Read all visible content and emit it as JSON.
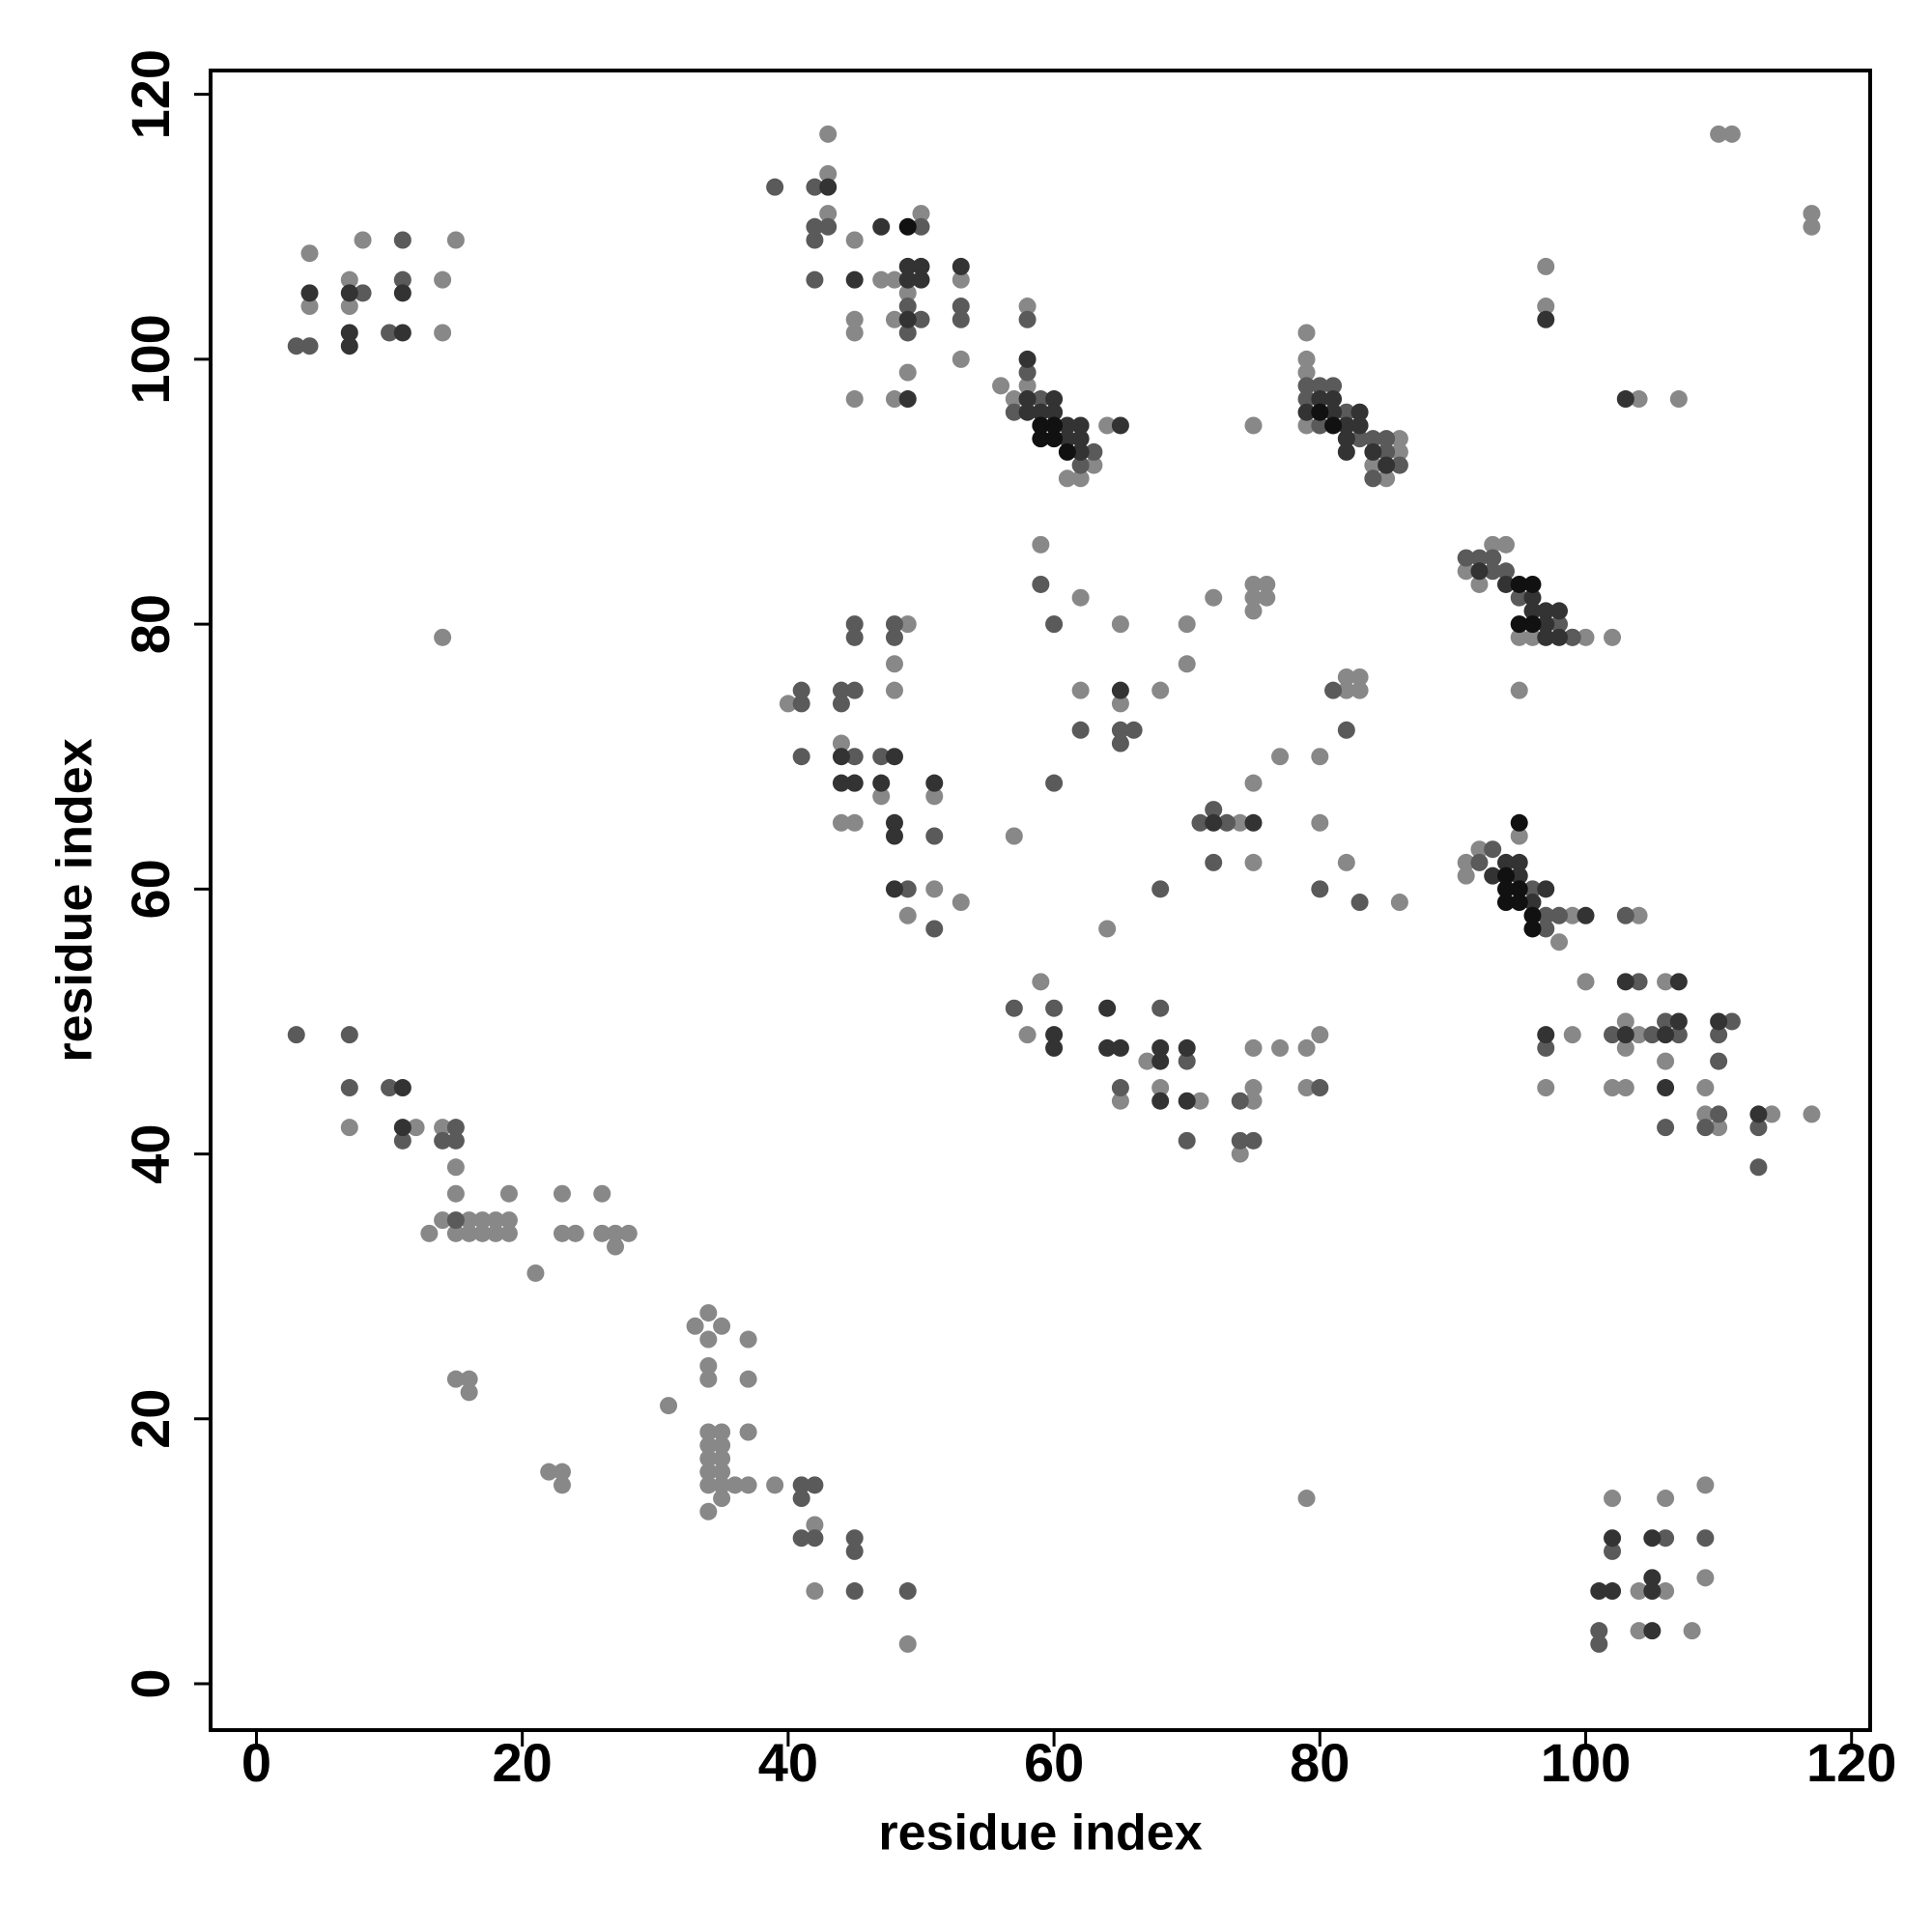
{
  "chart_data": {
    "type": "scatter",
    "xlabel": "residue index",
    "ylabel": "residue index",
    "xlim": [
      -3.45,
      121.4
    ],
    "ylim": [
      -3.5,
      121.8
    ],
    "xticks": [
      0,
      20,
      40,
      60,
      80,
      100,
      120
    ],
    "yticks": [
      0,
      20,
      40,
      60,
      80,
      100,
      120
    ],
    "series": [
      {
        "color": "#888888",
        "x": [
          4,
          4,
          7,
          7,
          8,
          14,
          14,
          15,
          14,
          7,
          12,
          14,
          15,
          15,
          14,
          15,
          16,
          17,
          18,
          19,
          16,
          17,
          18,
          19,
          19,
          13,
          23,
          23,
          24,
          26,
          26,
          27,
          27,
          28,
          21,
          15,
          16,
          16,
          22,
          23,
          23,
          31,
          33,
          34,
          34,
          35,
          34,
          34,
          37,
          37,
          37,
          34,
          35,
          34,
          35,
          34,
          35,
          34,
          35,
          34,
          35,
          34,
          36,
          37,
          35,
          39,
          42,
          42,
          49,
          43,
          43,
          43,
          45,
          45,
          45,
          45,
          47,
          48,
          48,
          48,
          49,
          49,
          50,
          53,
          53,
          40,
          44,
          44,
          45,
          45,
          47,
          48,
          48,
          49,
          51,
          51,
          49,
          53,
          56,
          57,
          58,
          58,
          61,
          62,
          63,
          64,
          59,
          57,
          62,
          62,
          65,
          65,
          64,
          68,
          70,
          70,
          72,
          59,
          58,
          65,
          67,
          68,
          71,
          74,
          75,
          75,
          75,
          77,
          79,
          80,
          79,
          74,
          75,
          75,
          75,
          76,
          75,
          76,
          75,
          77,
          80,
          80,
          82,
          82,
          83,
          83,
          82,
          86,
          75,
          79,
          79,
          79,
          79,
          84,
          85,
          86,
          86,
          91,
          92,
          93,
          94,
          95,
          96,
          99,
          100,
          102,
          95,
          91,
          91,
          92,
          95,
          98,
          99,
          97,
          99,
          100,
          102,
          103,
          103,
          104,
          103,
          106,
          106,
          104,
          109,
          109,
          110,
          114,
          117,
          97,
          97,
          104,
          107,
          110,
          111,
          117,
          117,
          102,
          106,
          104,
          106,
          104,
          108,
          109,
          109,
          79
        ],
        "y": [
          108,
          104,
          106,
          104,
          109,
          106,
          102,
          109,
          79,
          42,
          42,
          42,
          39,
          37,
          35,
          34,
          34,
          34,
          34,
          34,
          35,
          35,
          35,
          35,
          37,
          34,
          37,
          34,
          34,
          37,
          34,
          34,
          33,
          34,
          31,
          23,
          23,
          22,
          16,
          16,
          15,
          21,
          27,
          28,
          26,
          27,
          24,
          23,
          26,
          23,
          19,
          19,
          19,
          18,
          18,
          17,
          17,
          16,
          16,
          15,
          15,
          13,
          15,
          15,
          14,
          15,
          12,
          7,
          3,
          117,
          114,
          111,
          109,
          103,
          102,
          97,
          106,
          106,
          103,
          97,
          105,
          99,
          111,
          106,
          100,
          74,
          71,
          65,
          65,
          68,
          67,
          77,
          75,
          80,
          67,
          60,
          58,
          59,
          98,
          97,
          104,
          98,
          91,
          91,
          92,
          95,
          86,
          64,
          82,
          75,
          80,
          74,
          57,
          75,
          80,
          77,
          82,
          53,
          49,
          44,
          47,
          45,
          44,
          40,
          48,
          45,
          44,
          48,
          48,
          49,
          45,
          65,
          68,
          62,
          83,
          83,
          82,
          82,
          81,
          70,
          70,
          65,
          75,
          76,
          76,
          75,
          62,
          59,
          95,
          102,
          100,
          99,
          95,
          92,
          91,
          94,
          93,
          84,
          83,
          86,
          86,
          79,
          79,
          79,
          79,
          79,
          75,
          62,
          61,
          63,
          64,
          56,
          58,
          45,
          49,
          53,
          45,
          50,
          48,
          58,
          45,
          53,
          47,
          49,
          45,
          43,
          42,
          43,
          43,
          107,
          104,
          97,
          97,
          117,
          117,
          111,
          110,
          14,
          14,
          7,
          7,
          4,
          4,
          15,
          8,
          14
        ]
      },
      {
        "color": "#5a5a5a",
        "x": [
          3,
          4,
          11,
          11,
          10,
          8,
          3,
          7,
          7,
          10,
          11,
          14,
          15,
          15,
          15,
          41,
          42,
          41,
          41,
          42,
          45,
          45,
          45,
          49,
          39,
          42,
          42,
          42,
          43,
          42,
          49,
          49,
          50,
          53,
          53,
          50,
          41,
          41,
          41,
          44,
          44,
          45,
          45,
          45,
          45,
          48,
          48,
          47,
          49,
          51,
          51,
          57,
          58,
          58,
          59,
          62,
          63,
          59,
          60,
          60,
          62,
          65,
          65,
          66,
          68,
          71,
          72,
          72,
          57,
          60,
          65,
          68,
          70,
          70,
          74,
          74,
          75,
          80,
          73,
          80,
          81,
          82,
          83,
          79,
          79,
          80,
          81,
          80,
          82,
          83,
          84,
          85,
          86,
          84,
          85,
          91,
          92,
          93,
          93,
          94,
          95,
          98,
          99,
          92,
          93,
          96,
          97,
          98,
          97,
          97,
          102,
          103,
          104,
          105,
          106,
          107,
          109,
          110,
          110,
          110,
          111,
          113,
          113,
          106,
          101,
          101,
          102,
          109,
          106
        ],
        "y": [
          101,
          101,
          109,
          106,
          102,
          105,
          49,
          49,
          45,
          45,
          41,
          41,
          41,
          42,
          35,
          15,
          15,
          14,
          11,
          11,
          11,
          10,
          7,
          7,
          113,
          113,
          110,
          109,
          110,
          106,
          104,
          102,
          103,
          104,
          103,
          110,
          75,
          74,
          70,
          75,
          74,
          75,
          80,
          79,
          70,
          80,
          79,
          70,
          60,
          64,
          57,
          96,
          103,
          99,
          97,
          92,
          93,
          83,
          80,
          68,
          72,
          72,
          71,
          72,
          60,
          65,
          66,
          62,
          51,
          51,
          45,
          51,
          47,
          41,
          44,
          41,
          41,
          45,
          65,
          60,
          75,
          72,
          59,
          98,
          97,
          98,
          98,
          95,
          96,
          94,
          94,
          93,
          92,
          91,
          94,
          85,
          85,
          84,
          85,
          84,
          82,
          80,
          79,
          62,
          63,
          60,
          58,
          58,
          57,
          48,
          49,
          58,
          53,
          49,
          50,
          49,
          42,
          43,
          47,
          49,
          50,
          42,
          39,
          42,
          4,
          3,
          10,
          11,
          11
        ]
      },
      {
        "color": "#333333",
        "x": [
          4,
          7,
          7,
          7,
          11,
          11,
          11,
          11,
          43,
          45,
          47,
          49,
          50,
          49,
          50,
          49,
          49,
          53,
          44,
          44,
          45,
          47,
          48,
          48,
          48,
          48,
          51,
          58,
          58,
          58,
          59,
          60,
          60,
          61,
          61,
          62,
          62,
          62,
          65,
          65,
          72,
          60,
          60,
          64,
          64,
          65,
          68,
          68,
          70,
          70,
          68,
          75,
          79,
          80,
          81,
          81,
          82,
          82,
          83,
          83,
          84,
          85,
          82,
          92,
          94,
          96,
          96,
          97,
          97,
          98,
          98,
          97,
          93,
          94,
          95,
          95,
          96,
          97,
          100,
          97,
          103,
          103,
          106,
          107,
          107,
          106,
          110,
          113,
          97,
          103,
          101,
          102,
          102,
          105,
          105,
          105,
          105
        ],
        "y": [
          105,
          105,
          102,
          101,
          105,
          102,
          45,
          42,
          113,
          106,
          110,
          107,
          107,
          106,
          106,
          103,
          97,
          107,
          70,
          68,
          68,
          68,
          70,
          65,
          64,
          60,
          68,
          100,
          97,
          96,
          96,
          97,
          96,
          95,
          94,
          95,
          94,
          93,
          95,
          75,
          65,
          49,
          48,
          51,
          48,
          48,
          48,
          47,
          48,
          44,
          44,
          65,
          96,
          97,
          97,
          96,
          95,
          94,
          96,
          95,
          93,
          92,
          93,
          84,
          83,
          82,
          81,
          81,
          80,
          81,
          79,
          79,
          61,
          62,
          62,
          61,
          59,
          60,
          58,
          49,
          53,
          49,
          49,
          50,
          53,
          45,
          50,
          43,
          103,
          97,
          7,
          7,
          11,
          11,
          8,
          7,
          4
        ]
      },
      {
        "color": "#111111",
        "x": [
          59,
          60,
          61,
          60,
          59,
          80,
          81,
          95,
          96,
          95,
          96,
          94,
          94,
          95,
          95,
          96,
          96,
          95,
          94,
          49
        ],
        "y": [
          94,
          94,
          93,
          95,
          95,
          96,
          95,
          83,
          83,
          80,
          80,
          61,
          60,
          60,
          59,
          58,
          57,
          65,
          59,
          110
        ]
      }
    ]
  }
}
